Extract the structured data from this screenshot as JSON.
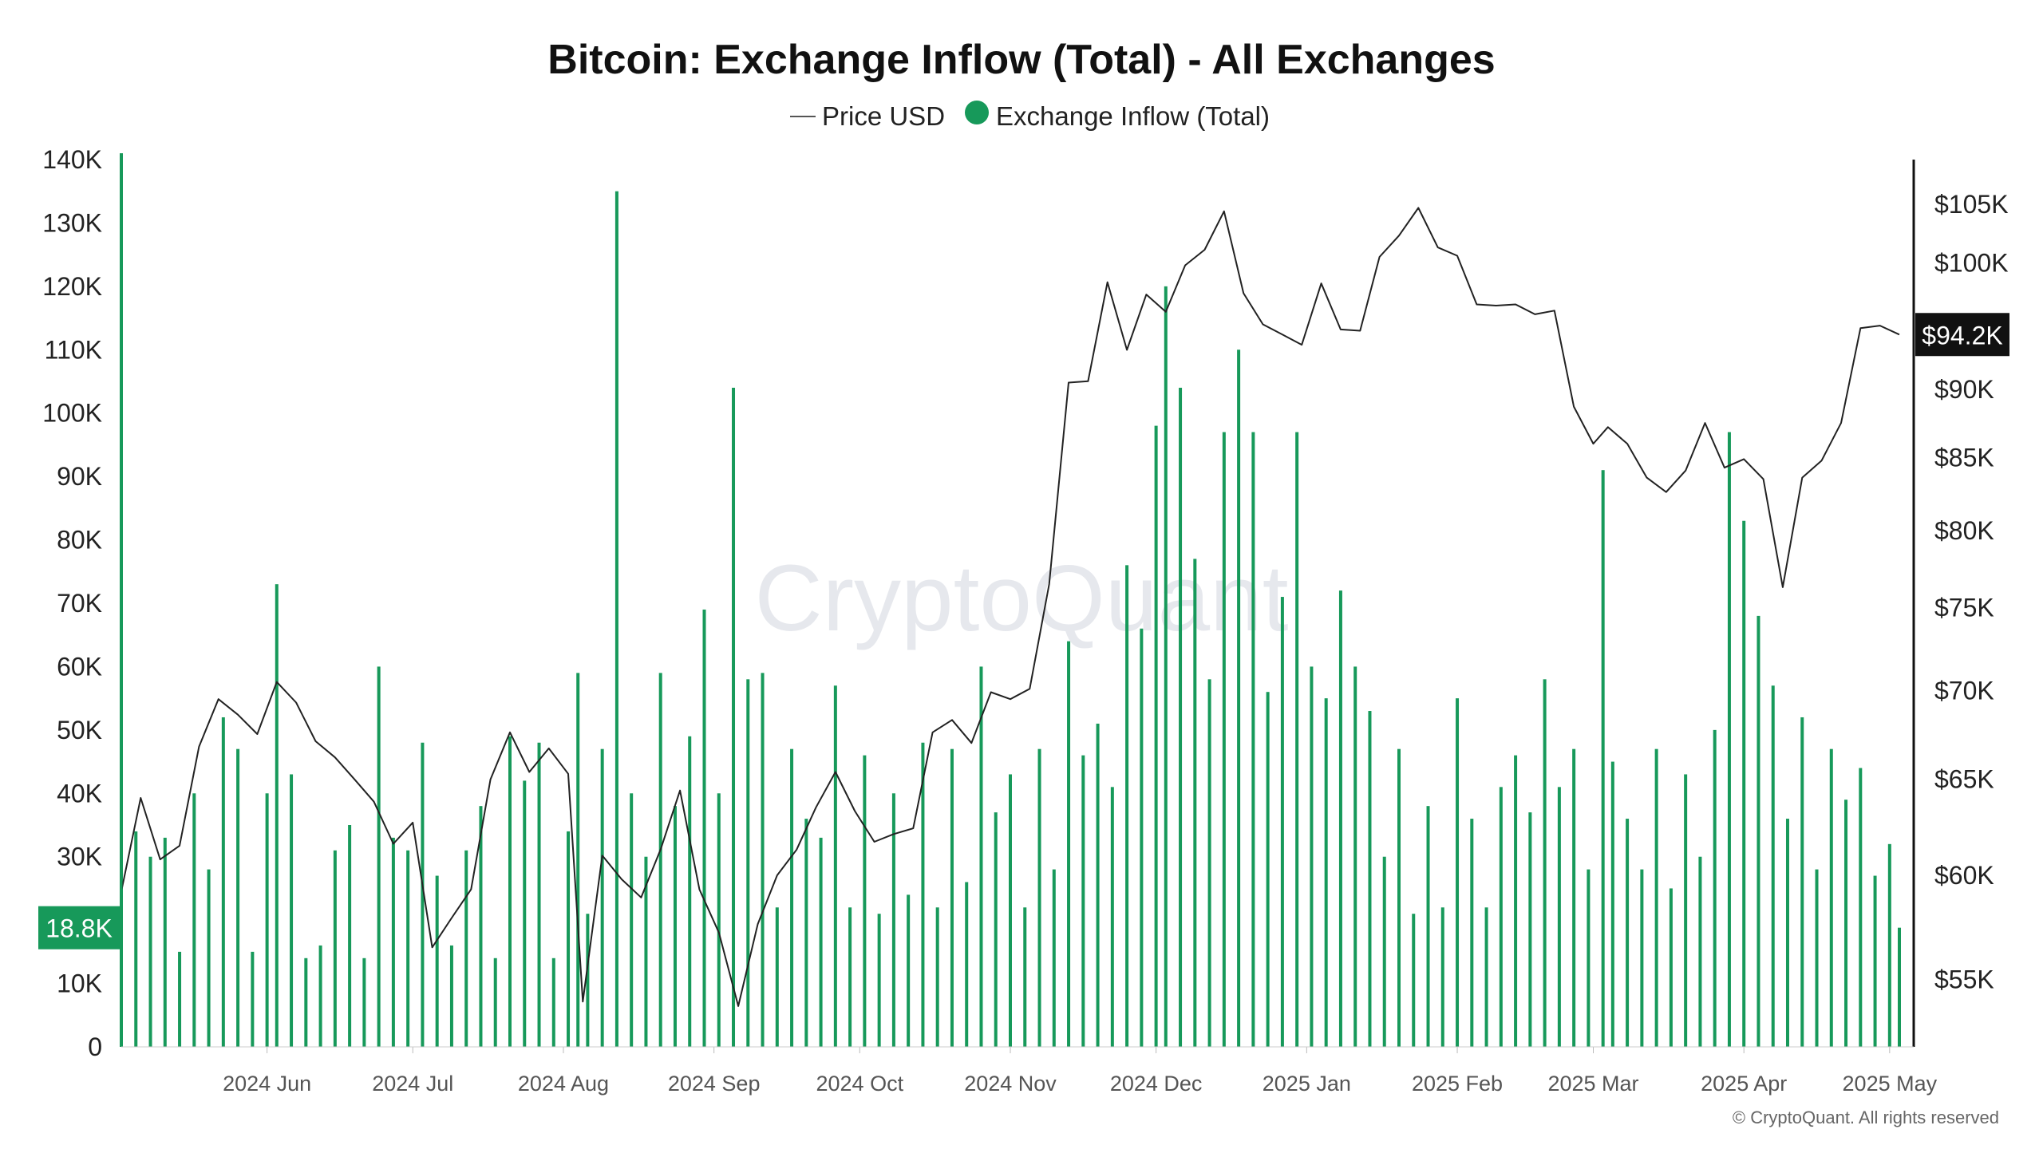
{
  "title": "Bitcoin: Exchange Inflow (Total) - All Exchanges",
  "legend": {
    "price_label": "Price USD",
    "inflow_label": "Exchange Inflow (Total)"
  },
  "watermark": "CryptoQuant",
  "copyright": "© CryptoQuant. All rights reserved",
  "colors": {
    "bar": "#17995a",
    "price_line": "#222222",
    "badge_left": "#17995a",
    "badge_right": "#111111"
  },
  "chart_data": {
    "type": "bar",
    "title": "Bitcoin: Exchange Inflow (Total) - All Exchanges",
    "x_range": [
      "2024-05-02",
      "2025-05-03"
    ],
    "x_ticks": [
      {
        "date": "2024-06-01",
        "label": "2024 Jun"
      },
      {
        "date": "2024-07-01",
        "label": "2024 Jul"
      },
      {
        "date": "2024-08-01",
        "label": "2024 Aug"
      },
      {
        "date": "2024-09-01",
        "label": "2024 Sep"
      },
      {
        "date": "2024-10-01",
        "label": "2024 Oct"
      },
      {
        "date": "2024-11-01",
        "label": "2024 Nov"
      },
      {
        "date": "2024-12-01",
        "label": "2024 Dec"
      },
      {
        "date": "2025-01-01",
        "label": "2025 Jan"
      },
      {
        "date": "2025-02-01",
        "label": "2025 Feb"
      },
      {
        "date": "2025-03-01",
        "label": "2025 Mar"
      },
      {
        "date": "2025-04-01",
        "label": "2025 Apr"
      },
      {
        "date": "2025-05-01",
        "label": "2025 May"
      }
    ],
    "y_left": {
      "range": [
        0,
        140000
      ],
      "ticks": [
        {
          "value": 0,
          "label": "0"
        },
        {
          "value": 10000,
          "label": "10K"
        },
        {
          "value": 30000,
          "label": "30K"
        },
        {
          "value": 40000,
          "label": "40K"
        },
        {
          "value": 50000,
          "label": "50K"
        },
        {
          "value": 60000,
          "label": "60K"
        },
        {
          "value": 70000,
          "label": "70K"
        },
        {
          "value": 80000,
          "label": "80K"
        },
        {
          "value": 90000,
          "label": "90K"
        },
        {
          "value": 100000,
          "label": "100K"
        },
        {
          "value": 110000,
          "label": "110K"
        },
        {
          "value": 120000,
          "label": "120K"
        },
        {
          "value": 130000,
          "label": "130K"
        },
        {
          "value": 140000,
          "label": "140K"
        }
      ],
      "current_label": "18.8K",
      "current_value": 18800
    },
    "y_right": {
      "scale": "log",
      "range": [
        52000,
        109000
      ],
      "ticks": [
        {
          "value": 55000,
          "label": "$55K"
        },
        {
          "value": 60000,
          "label": "$60K"
        },
        {
          "value": 65000,
          "label": "$65K"
        },
        {
          "value": 70000,
          "label": "$70K"
        },
        {
          "value": 75000,
          "label": "$75K"
        },
        {
          "value": 80000,
          "label": "$80K"
        },
        {
          "value": 85000,
          "label": "$85K"
        },
        {
          "value": 90000,
          "label": "$90K"
        },
        {
          "value": 100000,
          "label": "$100K"
        },
        {
          "value": 105000,
          "label": "$105K"
        }
      ],
      "current_label": "$94.2K",
      "current_value": 94200
    },
    "series": [
      {
        "name": "Exchange Inflow (Total)",
        "type": "bar",
        "points": [
          [
            "2024-05-02",
            141000
          ],
          [
            "2024-05-05",
            34000
          ],
          [
            "2024-05-08",
            30000
          ],
          [
            "2024-05-11",
            33000
          ],
          [
            "2024-05-14",
            15000
          ],
          [
            "2024-05-17",
            40000
          ],
          [
            "2024-05-20",
            28000
          ],
          [
            "2024-05-23",
            52000
          ],
          [
            "2024-05-26",
            47000
          ],
          [
            "2024-05-29",
            15000
          ],
          [
            "2024-06-01",
            40000
          ],
          [
            "2024-06-03",
            73000
          ],
          [
            "2024-06-06",
            43000
          ],
          [
            "2024-06-09",
            14000
          ],
          [
            "2024-06-12",
            16000
          ],
          [
            "2024-06-15",
            31000
          ],
          [
            "2024-06-18",
            35000
          ],
          [
            "2024-06-21",
            14000
          ],
          [
            "2024-06-24",
            60000
          ],
          [
            "2024-06-27",
            33000
          ],
          [
            "2024-06-30",
            31000
          ],
          [
            "2024-07-03",
            48000
          ],
          [
            "2024-07-06",
            27000
          ],
          [
            "2024-07-09",
            16000
          ],
          [
            "2024-07-12",
            31000
          ],
          [
            "2024-07-15",
            38000
          ],
          [
            "2024-07-18",
            14000
          ],
          [
            "2024-07-21",
            49000
          ],
          [
            "2024-07-24",
            42000
          ],
          [
            "2024-07-27",
            48000
          ],
          [
            "2024-07-30",
            14000
          ],
          [
            "2024-08-02",
            34000
          ],
          [
            "2024-08-04",
            59000
          ],
          [
            "2024-08-06",
            21000
          ],
          [
            "2024-08-09",
            47000
          ],
          [
            "2024-08-12",
            135000
          ],
          [
            "2024-08-15",
            40000
          ],
          [
            "2024-08-18",
            30000
          ],
          [
            "2024-08-21",
            59000
          ],
          [
            "2024-08-24",
            38000
          ],
          [
            "2024-08-27",
            49000
          ],
          [
            "2024-08-30",
            69000
          ],
          [
            "2024-09-02",
            40000
          ],
          [
            "2024-09-05",
            104000
          ],
          [
            "2024-09-08",
            58000
          ],
          [
            "2024-09-11",
            59000
          ],
          [
            "2024-09-14",
            22000
          ],
          [
            "2024-09-17",
            47000
          ],
          [
            "2024-09-20",
            36000
          ],
          [
            "2024-09-23",
            33000
          ],
          [
            "2024-09-26",
            57000
          ],
          [
            "2024-09-29",
            22000
          ],
          [
            "2024-10-02",
            46000
          ],
          [
            "2024-10-05",
            21000
          ],
          [
            "2024-10-08",
            40000
          ],
          [
            "2024-10-11",
            24000
          ],
          [
            "2024-10-14",
            48000
          ],
          [
            "2024-10-17",
            22000
          ],
          [
            "2024-10-20",
            47000
          ],
          [
            "2024-10-23",
            26000
          ],
          [
            "2024-10-26",
            60000
          ],
          [
            "2024-10-29",
            37000
          ],
          [
            "2024-11-01",
            43000
          ],
          [
            "2024-11-04",
            22000
          ],
          [
            "2024-11-07",
            47000
          ],
          [
            "2024-11-10",
            28000
          ],
          [
            "2024-11-13",
            64000
          ],
          [
            "2024-11-16",
            46000
          ],
          [
            "2024-11-19",
            51000
          ],
          [
            "2024-11-22",
            41000
          ],
          [
            "2024-11-25",
            76000
          ],
          [
            "2024-11-28",
            66000
          ],
          [
            "2024-12-01",
            98000
          ],
          [
            "2024-12-03",
            120000
          ],
          [
            "2024-12-06",
            104000
          ],
          [
            "2024-12-09",
            77000
          ],
          [
            "2024-12-12",
            58000
          ],
          [
            "2024-12-15",
            97000
          ],
          [
            "2024-12-18",
            110000
          ],
          [
            "2024-12-21",
            97000
          ],
          [
            "2024-12-24",
            56000
          ],
          [
            "2024-12-27",
            71000
          ],
          [
            "2024-12-30",
            97000
          ],
          [
            "2025-01-02",
            60000
          ],
          [
            "2025-01-05",
            55000
          ],
          [
            "2025-01-08",
            72000
          ],
          [
            "2025-01-11",
            60000
          ],
          [
            "2025-01-14",
            53000
          ],
          [
            "2025-01-17",
            30000
          ],
          [
            "2025-01-20",
            47000
          ],
          [
            "2025-01-23",
            21000
          ],
          [
            "2025-01-26",
            38000
          ],
          [
            "2025-01-29",
            22000
          ],
          [
            "2025-02-01",
            55000
          ],
          [
            "2025-02-04",
            36000
          ],
          [
            "2025-02-07",
            22000
          ],
          [
            "2025-02-10",
            41000
          ],
          [
            "2025-02-13",
            46000
          ],
          [
            "2025-02-16",
            37000
          ],
          [
            "2025-02-19",
            58000
          ],
          [
            "2025-02-22",
            41000
          ],
          [
            "2025-02-25",
            47000
          ],
          [
            "2025-02-28",
            28000
          ],
          [
            "2025-03-03",
            91000
          ],
          [
            "2025-03-05",
            45000
          ],
          [
            "2025-03-08",
            36000
          ],
          [
            "2025-03-11",
            28000
          ],
          [
            "2025-03-14",
            47000
          ],
          [
            "2025-03-17",
            25000
          ],
          [
            "2025-03-20",
            43000
          ],
          [
            "2025-03-23",
            30000
          ],
          [
            "2025-03-26",
            50000
          ],
          [
            "2025-03-29",
            97000
          ],
          [
            "2025-04-01",
            83000
          ],
          [
            "2025-04-04",
            68000
          ],
          [
            "2025-04-07",
            57000
          ],
          [
            "2025-04-10",
            36000
          ],
          [
            "2025-04-13",
            52000
          ],
          [
            "2025-04-16",
            28000
          ],
          [
            "2025-04-19",
            47000
          ],
          [
            "2025-04-22",
            39000
          ],
          [
            "2025-04-25",
            44000
          ],
          [
            "2025-04-28",
            27000
          ],
          [
            "2025-05-01",
            32000
          ],
          [
            "2025-05-03",
            18800
          ]
        ]
      },
      {
        "name": "Price USD",
        "type": "line",
        "points": [
          [
            "2024-05-02",
            59200
          ],
          [
            "2024-05-06",
            64000
          ],
          [
            "2024-05-10",
            60800
          ],
          [
            "2024-05-14",
            61500
          ],
          [
            "2024-05-18",
            66800
          ],
          [
            "2024-05-22",
            69500
          ],
          [
            "2024-05-26",
            68600
          ],
          [
            "2024-05-30",
            67500
          ],
          [
            "2024-06-03",
            70500
          ],
          [
            "2024-06-07",
            69300
          ],
          [
            "2024-06-11",
            67100
          ],
          [
            "2024-06-15",
            66200
          ],
          [
            "2024-06-19",
            65000
          ],
          [
            "2024-06-23",
            63800
          ],
          [
            "2024-06-27",
            61600
          ],
          [
            "2024-07-01",
            62700
          ],
          [
            "2024-07-05",
            56500
          ],
          [
            "2024-07-09",
            57900
          ],
          [
            "2024-07-13",
            59300
          ],
          [
            "2024-07-17",
            65000
          ],
          [
            "2024-07-21",
            67600
          ],
          [
            "2024-07-25",
            65400
          ],
          [
            "2024-07-29",
            66700
          ],
          [
            "2024-08-02",
            65300
          ],
          [
            "2024-08-05",
            54000
          ],
          [
            "2024-08-09",
            61000
          ],
          [
            "2024-08-13",
            59800
          ],
          [
            "2024-08-17",
            58900
          ],
          [
            "2024-08-21",
            61300
          ],
          [
            "2024-08-25",
            64400
          ],
          [
            "2024-08-29",
            59300
          ],
          [
            "2024-09-02",
            57200
          ],
          [
            "2024-09-06",
            53800
          ],
          [
            "2024-09-10",
            57600
          ],
          [
            "2024-09-14",
            60000
          ],
          [
            "2024-09-18",
            61300
          ],
          [
            "2024-09-22",
            63500
          ],
          [
            "2024-09-26",
            65400
          ],
          [
            "2024-09-30",
            63300
          ],
          [
            "2024-10-04",
            61700
          ],
          [
            "2024-10-08",
            62100
          ],
          [
            "2024-10-12",
            62400
          ],
          [
            "2024-10-16",
            67600
          ],
          [
            "2024-10-20",
            68300
          ],
          [
            "2024-10-24",
            67000
          ],
          [
            "2024-10-28",
            69900
          ],
          [
            "2024-11-01",
            69500
          ],
          [
            "2024-11-05",
            70100
          ],
          [
            "2024-11-09",
            76500
          ],
          [
            "2024-11-13",
            90500
          ],
          [
            "2024-11-17",
            90600
          ],
          [
            "2024-11-21",
            98400
          ],
          [
            "2024-11-25",
            93000
          ],
          [
            "2024-11-29",
            97400
          ],
          [
            "2024-12-03",
            96000
          ],
          [
            "2024-12-07",
            99800
          ],
          [
            "2024-12-11",
            101100
          ],
          [
            "2024-12-15",
            104400
          ],
          [
            "2024-12-19",
            97500
          ],
          [
            "2024-12-23",
            95000
          ],
          [
            "2024-12-27",
            94200
          ],
          [
            "2024-12-31",
            93400
          ],
          [
            "2025-01-04",
            98300
          ],
          [
            "2025-01-08",
            94600
          ],
          [
            "2025-01-12",
            94500
          ],
          [
            "2025-01-16",
            100500
          ],
          [
            "2025-01-20",
            102300
          ],
          [
            "2025-01-24",
            104700
          ],
          [
            "2025-01-28",
            101300
          ],
          [
            "2025-02-01",
            100600
          ],
          [
            "2025-02-05",
            96600
          ],
          [
            "2025-02-09",
            96500
          ],
          [
            "2025-02-13",
            96600
          ],
          [
            "2025-02-17",
            95800
          ],
          [
            "2025-02-21",
            96100
          ],
          [
            "2025-02-25",
            88700
          ],
          [
            "2025-03-01",
            86000
          ],
          [
            "2025-03-04",
            87200
          ],
          [
            "2025-03-08",
            86000
          ],
          [
            "2025-03-12",
            83600
          ],
          [
            "2025-03-16",
            82600
          ],
          [
            "2025-03-20",
            84100
          ],
          [
            "2025-03-24",
            87500
          ],
          [
            "2025-03-28",
            84300
          ],
          [
            "2025-04-01",
            84900
          ],
          [
            "2025-04-05",
            83500
          ],
          [
            "2025-04-09",
            76300
          ],
          [
            "2025-04-13",
            83600
          ],
          [
            "2025-04-17",
            84800
          ],
          [
            "2025-04-21",
            87500
          ],
          [
            "2025-04-25",
            94700
          ],
          [
            "2025-04-29",
            94900
          ],
          [
            "2025-05-03",
            94200
          ]
        ]
      }
    ]
  }
}
